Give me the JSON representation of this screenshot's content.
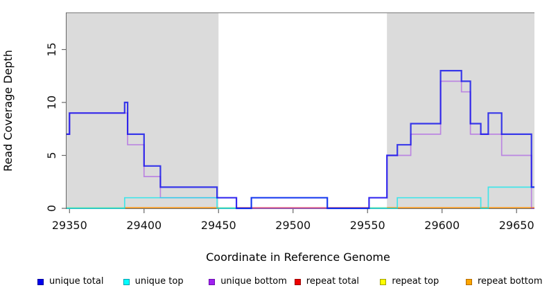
{
  "chart_data": {
    "type": "line",
    "subtype": "step-coverage-plot",
    "title": "",
    "xlabel": "Coordinate in Reference Genome",
    "ylabel": "Read Coverage Depth",
    "xlim": [
      29348,
      29662
    ],
    "ylim": [
      0,
      18.5
    ],
    "grid": false,
    "x_ticks": [
      {
        "value": 29350,
        "label": "29350"
      },
      {
        "value": 29400,
        "label": "29400"
      },
      {
        "value": 29450,
        "label": "29450"
      },
      {
        "value": 29500,
        "label": "29500"
      },
      {
        "value": 29550,
        "label": "29550"
      },
      {
        "value": 29600,
        "label": "29600"
      },
      {
        "value": 29650,
        "label": "29650"
      }
    ],
    "y_ticks": [
      {
        "value": 0,
        "label": "0"
      },
      {
        "value": 5,
        "label": "5"
      },
      {
        "value": 10,
        "label": "10"
      },
      {
        "value": 15,
        "label": "15"
      }
    ],
    "shaded_regions": [
      {
        "from": 29348,
        "to": 29450,
        "color": "#dbdbdb"
      },
      {
        "from": 29563,
        "to": 29662,
        "color": "#dbdbdb"
      }
    ],
    "baseline_segments": [
      {
        "from": 29348,
        "to": 29387,
        "color": "#8fdc9f",
        "opacity": 0.9
      },
      {
        "from": 29387,
        "to": 29450,
        "color": "#ff9100",
        "opacity": 0.95
      },
      {
        "from": 29450,
        "to": 29462,
        "color": "#8fdc9f",
        "opacity": 0.9
      },
      {
        "from": 29462,
        "to": 29551,
        "color": "#e04858",
        "opacity": 0.85
      },
      {
        "from": 29551,
        "to": 29563,
        "color": "#8fdc9f",
        "opacity": 0.9
      },
      {
        "from": 29563,
        "to": 29662,
        "color": "#ff9100",
        "opacity": 0.95
      }
    ],
    "series": [
      {
        "name": "unique bottom",
        "color": "#9b30e8",
        "opacity": 0.5,
        "width": 1.7,
        "points": [
          [
            29348,
            7
          ],
          [
            29350,
            9
          ],
          [
            29389,
            6
          ],
          [
            29400,
            3
          ],
          [
            29411,
            1
          ],
          [
            29462,
            0
          ],
          [
            29551,
            1
          ],
          [
            29563,
            5
          ],
          [
            29579,
            7
          ],
          [
            29599,
            12
          ],
          [
            29613,
            11
          ],
          [
            29619,
            7
          ],
          [
            29640,
            5
          ],
          [
            29660,
            0
          ],
          [
            29662,
            0
          ]
        ]
      },
      {
        "name": "unique top",
        "color": "#00e8f0",
        "opacity": 0.7,
        "width": 1.7,
        "points": [
          [
            29348,
            0
          ],
          [
            29387,
            1
          ],
          [
            29449,
            0
          ],
          [
            29472,
            1
          ],
          [
            29523,
            0
          ],
          [
            29570,
            1
          ],
          [
            29626,
            0
          ],
          [
            29631,
            2
          ],
          [
            29662,
            2
          ]
        ]
      },
      {
        "name": "unique total",
        "color": "#0000ee",
        "opacity": 0.75,
        "width": 2.2,
        "points": [
          [
            29348,
            7
          ],
          [
            29350,
            9
          ],
          [
            29387,
            10
          ],
          [
            29389,
            7
          ],
          [
            29400,
            4
          ],
          [
            29411,
            2
          ],
          [
            29449,
            1
          ],
          [
            29462,
            0
          ],
          [
            29472,
            1
          ],
          [
            29523,
            0
          ],
          [
            29551,
            1
          ],
          [
            29563,
            5
          ],
          [
            29570,
            6
          ],
          [
            29579,
            8
          ],
          [
            29599,
            13
          ],
          [
            29613,
            12
          ],
          [
            29619,
            8
          ],
          [
            29626,
            7
          ],
          [
            29631,
            9
          ],
          [
            29640,
            7
          ],
          [
            29660,
            2
          ],
          [
            29662,
            2
          ]
        ]
      }
    ],
    "axis_color": "#666666",
    "tick_label_color": "#111111",
    "top_border_color": "#8a8a8a"
  },
  "legend": {
    "items": [
      {
        "label": "unique total",
        "color": "#0000ee",
        "border": "#000099"
      },
      {
        "label": "unique top",
        "color": "#00ffff",
        "border": "#00a0b0"
      },
      {
        "label": "unique bottom",
        "color": "#a020f0",
        "border": "#6a0dad"
      },
      {
        "label": "repeat total",
        "color": "#ee0000",
        "border": "#990000"
      },
      {
        "label": "repeat top",
        "color": "#ffff00",
        "border": "#a0a000"
      },
      {
        "label": "repeat bottom",
        "color": "#ffa500",
        "border": "#b36b00"
      }
    ]
  }
}
